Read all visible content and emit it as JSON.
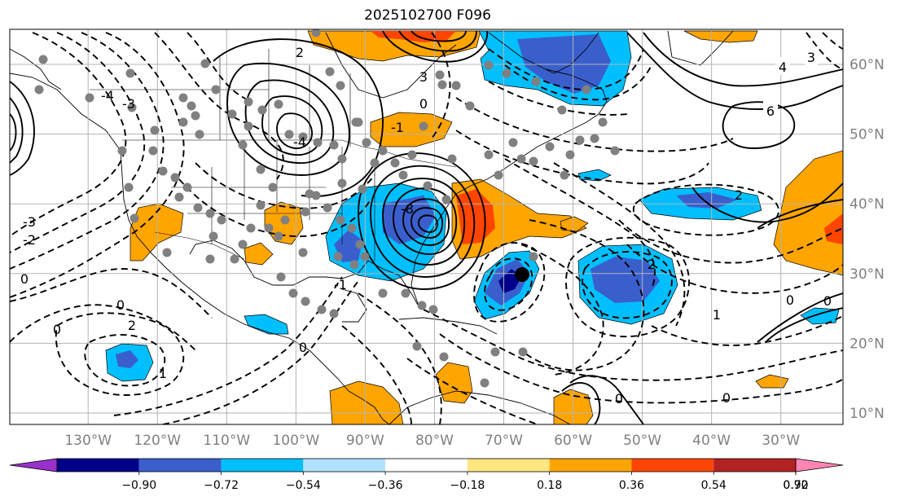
{
  "title": "2025102700 F096",
  "longitude_labels": [
    {
      "text": "130°W",
      "lon": -130
    },
    {
      "text": "120°W",
      "lon": -120
    },
    {
      "text": "110°W",
      "lon": -110
    },
    {
      "text": "100°W",
      "lon": -100
    },
    {
      "text": "90°W",
      "lon": -90
    },
    {
      "text": "80°W",
      "lon": -80
    },
    {
      "text": "70°W",
      "lon": -70
    },
    {
      "text": "60°W",
      "lon": -60
    },
    {
      "text": "50°W",
      "lon": -50
    },
    {
      "text": "40°W",
      "lon": -40
    },
    {
      "text": "30°W",
      "lon": -30
    }
  ],
  "latitude_labels": [
    {
      "text": "60°N",
      "lat": 60
    },
    {
      "text": "50°N",
      "lat": 50
    },
    {
      "text": "40°N",
      "lat": 40
    },
    {
      "text": "30°N",
      "lat": 30
    },
    {
      "text": "20°N",
      "lat": 20
    },
    {
      "text": "10°N",
      "lat": 10
    }
  ],
  "colorbar": {
    "levels": [
      "−0.90",
      "−0.72",
      "−0.54",
      "−0.36",
      "−0.18",
      "0.18",
      "0.36",
      "0.54",
      "0.72",
      "0.90"
    ],
    "colors": [
      "#9932cc",
      "#00008b",
      "#3a5fcd",
      "#00bfff",
      "#b0e2ff",
      "#ffffff",
      "#ffe680",
      "#ffa500",
      "#ff4500",
      "#b22222",
      "#ff86b3"
    ]
  },
  "contour_labels": [
    "6",
    "4",
    "3",
    "2",
    "1",
    "0",
    "-1",
    "-2",
    "-3",
    "-4",
    "-8"
  ],
  "colors": {
    "grid": "#b3b3b3",
    "coast": "#000000",
    "station_dot": "#808080",
    "storm_center": "#000000"
  }
}
